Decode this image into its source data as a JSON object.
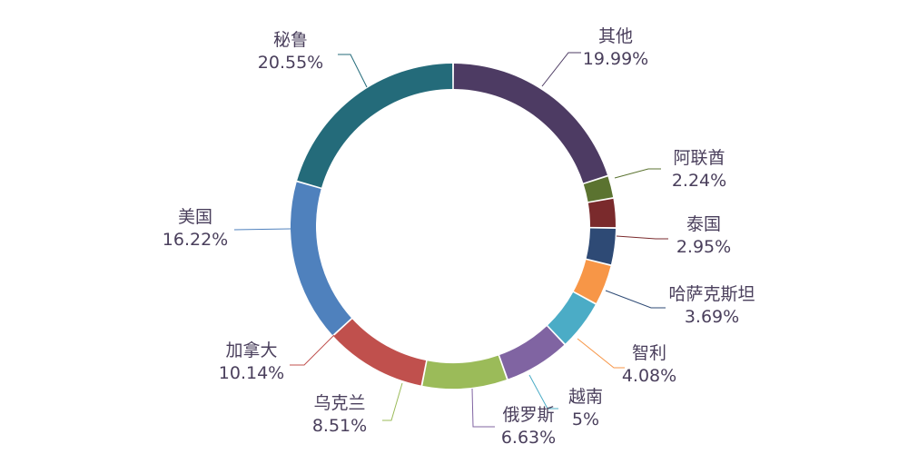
{
  "chart_data": {
    "type": "pie",
    "donut": true,
    "legend": "none",
    "slices": [
      {
        "name": "其他",
        "value": 19.99,
        "label": "19.99%",
        "color": "#4d3b63"
      },
      {
        "name": "阿联酋",
        "value": 2.24,
        "label": "2.24%",
        "color": "#5b7330"
      },
      {
        "name": "泰国",
        "value": 2.95,
        "label": "2.95%",
        "color": "#7a2a2c"
      },
      {
        "name": "哈萨克斯坦",
        "value": 3.69,
        "label": "3.69%",
        "color": "#2e4a75"
      },
      {
        "name": "智利",
        "value": 4.08,
        "label": "4.08%",
        "color": "#f79647"
      },
      {
        "name": "越南",
        "value": 5,
        "label": "5%",
        "color": "#4bacc6"
      },
      {
        "name": "俄罗斯",
        "value": 6.63,
        "label": "6.63%",
        "color": "#8064a2"
      },
      {
        "name": "乌克兰",
        "value": 8.51,
        "label": "8.51%",
        "color": "#9bbb59"
      },
      {
        "name": "加拿大",
        "value": 10.14,
        "label": "10.14%",
        "color": "#c0504d"
      },
      {
        "name": "美国",
        "value": 16.22,
        "label": "16.22%",
        "color": "#4f81bd"
      },
      {
        "name": "秘鲁",
        "value": 20.55,
        "label": "20.55%",
        "color": "#246b7a"
      }
    ]
  }
}
